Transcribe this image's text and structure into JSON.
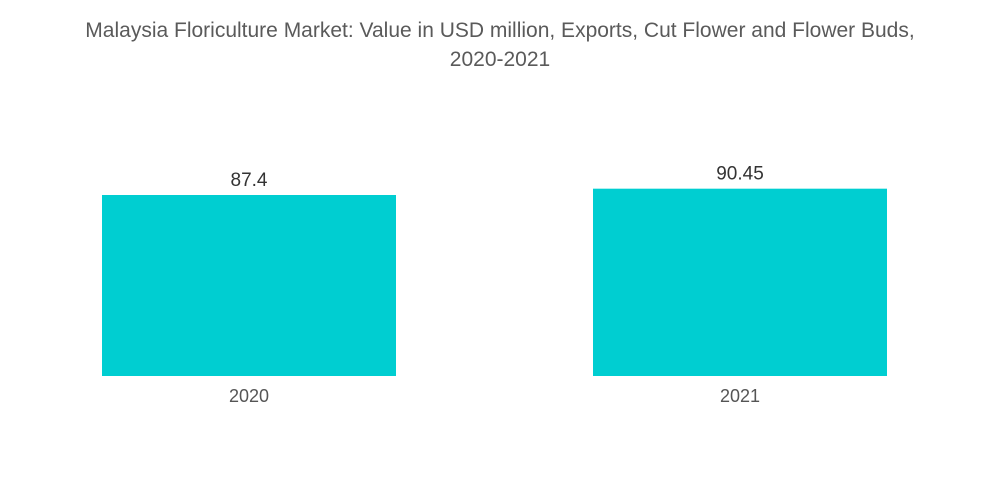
{
  "chart_data": {
    "type": "bar",
    "title_line1": "Malaysia Floriculture Market: Value in USD million, Exports, Cut Flower and Flower Buds,",
    "title_line2": "2020-2021",
    "categories": [
      "2020",
      "2021"
    ],
    "values": [
      87.4,
      90.45
    ],
    "data_labels": [
      "87.4",
      "90.45"
    ],
    "xlabel": "",
    "ylabel": "",
    "grid": false,
    "legend": "none",
    "bar_color": "#00ced1"
  }
}
